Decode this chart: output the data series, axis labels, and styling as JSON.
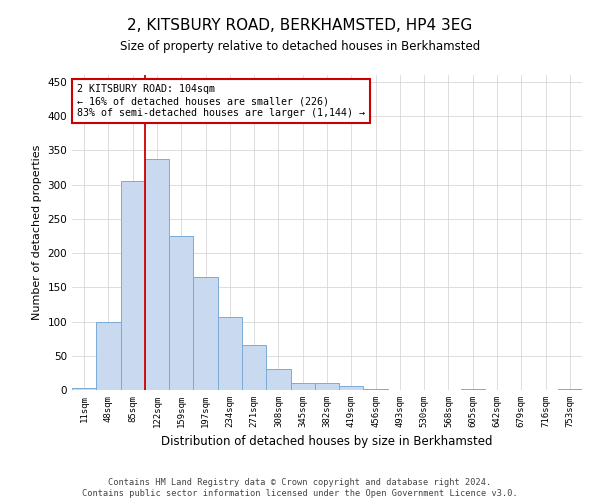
{
  "title1": "2, KITSBURY ROAD, BERKHAMSTED, HP4 3EG",
  "title2": "Size of property relative to detached houses in Berkhamsted",
  "xlabel": "Distribution of detached houses by size in Berkhamsted",
  "ylabel": "Number of detached properties",
  "footnote1": "Contains HM Land Registry data © Crown copyright and database right 2024.",
  "footnote2": "Contains public sector information licensed under the Open Government Licence v3.0.",
  "bar_labels": [
    "11sqm",
    "48sqm",
    "85sqm",
    "122sqm",
    "159sqm",
    "197sqm",
    "234sqm",
    "271sqm",
    "308sqm",
    "345sqm",
    "382sqm",
    "419sqm",
    "456sqm",
    "493sqm",
    "530sqm",
    "568sqm",
    "605sqm",
    "642sqm",
    "679sqm",
    "716sqm",
    "753sqm"
  ],
  "bar_values": [
    3,
    99,
    305,
    337,
    225,
    165,
    107,
    66,
    30,
    10,
    10,
    6,
    2,
    0,
    0,
    0,
    1,
    0,
    0,
    0,
    1
  ],
  "bar_color": "#c9d9f0",
  "bar_edge_color": "#7aaad4",
  "ylim": [
    0,
    460
  ],
  "yticks": [
    0,
    50,
    100,
    150,
    200,
    250,
    300,
    350,
    400,
    450
  ],
  "vline_x": 2.5,
  "annotation_title": "2 KITSBURY ROAD: 104sqm",
  "annotation_line1": "← 16% of detached houses are smaller (226)",
  "annotation_line2": "83% of semi-detached houses are larger (1,144) →",
  "annotation_box_color": "#ffffff",
  "annotation_box_edge": "#cc0000",
  "vline_color": "#cc0000",
  "grid_color": "#d0d0d0",
  "background_color": "#ffffff"
}
